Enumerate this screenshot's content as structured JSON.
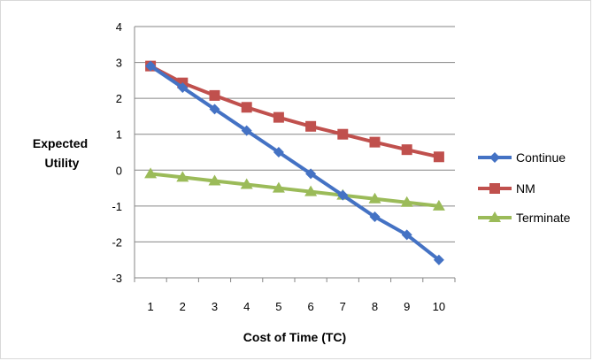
{
  "chart_data": {
    "type": "line",
    "title": "",
    "xlabel": "Cost of Time (TC)",
    "ylabel": "Expected Utility",
    "x": [
      1,
      2,
      3,
      4,
      5,
      6,
      7,
      8,
      9,
      10
    ],
    "ylim": [
      -3,
      4
    ],
    "yticks": [
      4,
      3,
      2,
      1,
      0,
      -1,
      -2,
      -3
    ],
    "grid": true,
    "legend_position": "right",
    "series": [
      {
        "name": "Continue",
        "color": "#4472c4",
        "marker": "diamond",
        "values": [
          2.9,
          2.3,
          1.7,
          1.1,
          0.5,
          -0.1,
          -0.7,
          -1.3,
          -1.8,
          -2.5
        ]
      },
      {
        "name": "NM",
        "color": "#c0504d",
        "marker": "square",
        "values": [
          2.9,
          2.43,
          2.08,
          1.75,
          1.47,
          1.22,
          1.0,
          0.78,
          0.57,
          0.37
        ]
      },
      {
        "name": "Terminate",
        "color": "#9bbb59",
        "marker": "triangle",
        "values": [
          -0.1,
          -0.2,
          -0.3,
          -0.4,
          -0.5,
          -0.6,
          -0.7,
          -0.8,
          -0.9,
          -1.0
        ]
      }
    ]
  }
}
